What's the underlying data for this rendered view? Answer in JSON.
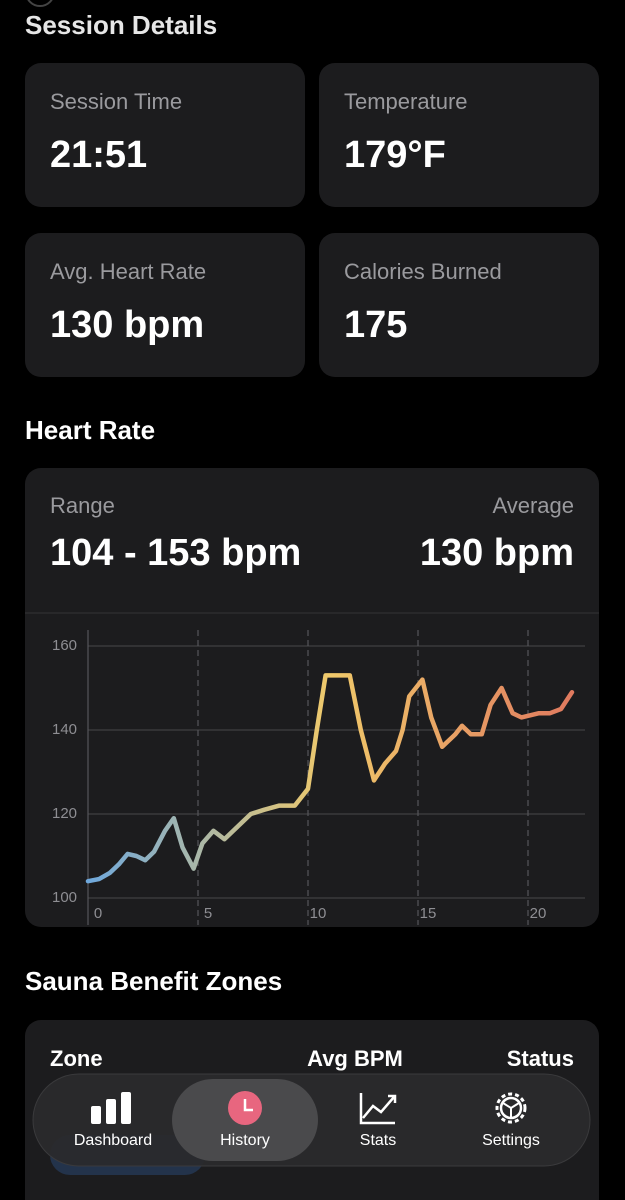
{
  "header": {
    "title": "Session Details"
  },
  "stats": [
    {
      "label": "Session Time",
      "value": "21:51"
    },
    {
      "label": "Temperature",
      "value": "179°F"
    },
    {
      "label": "Avg. Heart Rate",
      "value": "130 bpm"
    },
    {
      "label": "Calories Burned",
      "value": "175"
    }
  ],
  "heart_rate": {
    "title": "Heart Rate",
    "range_label": "Range",
    "range_value": "104 - 153 bpm",
    "average_label": "Average",
    "average_value": "130 bpm",
    "chart": {
      "type": "line",
      "x": [
        0,
        0.5,
        1,
        1.4,
        1.8,
        2.2,
        2.6,
        3,
        3.5,
        3.9,
        4.3,
        4.8,
        5.2,
        5.7,
        6.2,
        6.8,
        7.4,
        8,
        8.7,
        9.4,
        10,
        10.4,
        10.8,
        11.3,
        11.9,
        12.4,
        13,
        13.5,
        14,
        14.3,
        14.6,
        15.2,
        15.6,
        16.1,
        16.7,
        17,
        17.4,
        17.9,
        18.3,
        18.8,
        19.3,
        19.7,
        20.1,
        20.5,
        21,
        21.5,
        22
      ],
      "values": [
        104,
        104.5,
        106,
        108,
        110.5,
        110,
        109,
        111,
        116,
        119,
        112,
        107,
        113,
        116,
        114,
        117,
        120,
        121,
        122,
        122,
        126,
        140,
        153,
        153,
        153,
        140,
        128,
        132,
        135,
        140,
        148,
        152,
        143,
        136,
        139,
        141,
        139,
        139,
        146,
        150,
        144,
        143,
        143.5,
        144,
        144,
        145,
        149
      ],
      "xlim": [
        0,
        22
      ],
      "ylim": [
        100,
        160
      ],
      "xticks": [
        0,
        5,
        10,
        15,
        20
      ],
      "yticks": [
        100,
        120,
        140,
        160
      ],
      "colors": [
        "#6fa8dc",
        "#f0c96a",
        "#e07a5f"
      ],
      "grid": true
    }
  },
  "zones": {
    "title": "Sauna Benefit Zones",
    "columns": [
      "Zone",
      "Avg BPM",
      "Status"
    ]
  },
  "nav": {
    "items": [
      "Dashboard",
      "History",
      "Stats",
      "Settings"
    ],
    "active": 1,
    "active_color": "#e8667f"
  }
}
